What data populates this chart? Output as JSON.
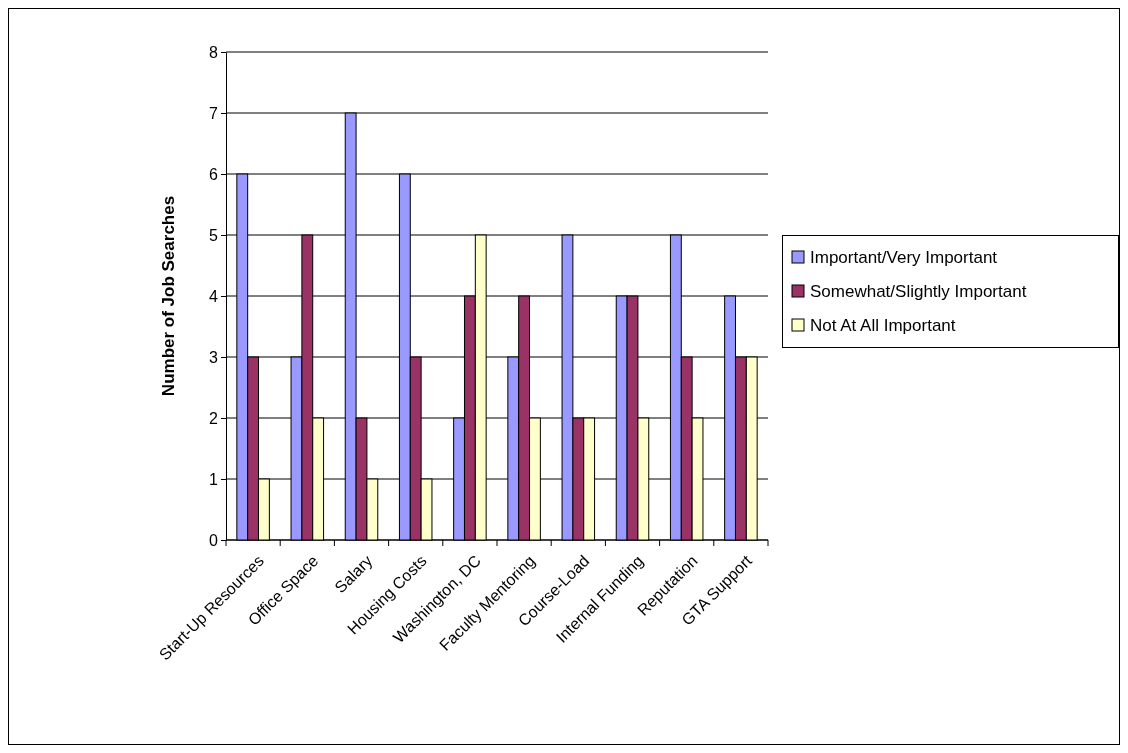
{
  "chart_data": {
    "type": "bar",
    "ylabel": "Number of Job Searches",
    "categories": [
      "Start-Up Resources",
      "Office Space",
      "Salary",
      "Housing Costs",
      "Washington, DC",
      "Faculty Mentoring",
      "Course-Load",
      "Internal Funding",
      "Reputation",
      "GTA Support"
    ],
    "series": [
      {
        "name": "Important/Very Important",
        "color": "#9999ff",
        "values": [
          6,
          3,
          7,
          6,
          2,
          3,
          5,
          4,
          5,
          4
        ]
      },
      {
        "name": "Somewhat/Slightly Important",
        "color": "#993366",
        "values": [
          3,
          5,
          2,
          3,
          4,
          4,
          2,
          4,
          3,
          3
        ]
      },
      {
        "name": "Not At All Important",
        "color": "#ffffcc",
        "values": [
          1,
          2,
          1,
          1,
          5,
          2,
          2,
          2,
          2,
          3
        ]
      }
    ],
    "ylim": [
      0,
      8
    ],
    "yticks": [
      0,
      1,
      2,
      3,
      4,
      5,
      6,
      7,
      8
    ],
    "grid": "y",
    "legend": "right"
  }
}
